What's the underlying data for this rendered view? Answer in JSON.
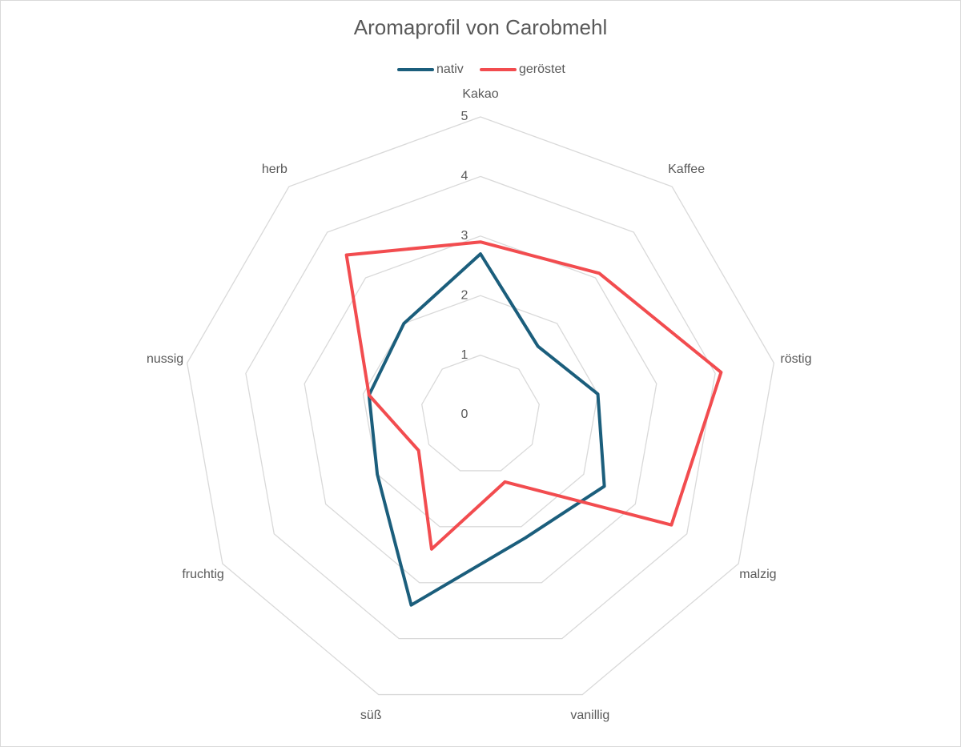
{
  "chart_data": {
    "type": "radar",
    "title": "Aromaprofil von Carobmehl",
    "categories": [
      "Kakao",
      "Kaffee",
      "röstig",
      "malzig",
      "vanillig",
      "süß",
      "fruchtig",
      "nussig",
      "herb"
    ],
    "series": [
      {
        "name": "nativ",
        "color": "#1b5e7c",
        "values": [
          2.7,
          1.5,
          2.0,
          2.4,
          2.2,
          3.4,
          2.0,
          1.9,
          2.0
        ]
      },
      {
        "name": "geröstet",
        "color": "#f24c4f",
        "values": [
          2.9,
          3.1,
          4.1,
          3.7,
          1.2,
          2.4,
          1.2,
          1.9,
          3.5
        ]
      }
    ],
    "ylim": [
      0,
      5
    ],
    "yticks": [
      0,
      1,
      2,
      3,
      4,
      5
    ],
    "grid": true,
    "legend": "top"
  }
}
